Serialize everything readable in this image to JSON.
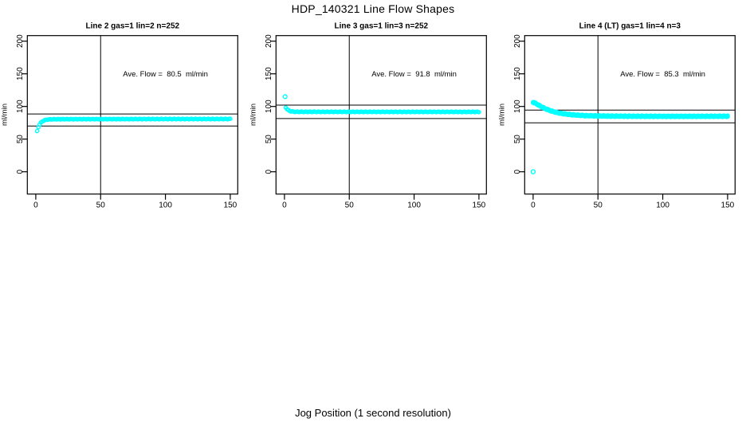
{
  "title": "HDP_140321  Line Flow Shapes",
  "xlabel": "Jog Position (1 second resolution)",
  "point_color": "#00ffff",
  "axis_color": "#000000",
  "background_color": "#ffffff",
  "chart_data": [
    {
      "type": "scatter",
      "title": "Line 2 gas=1 lin=2 n=252",
      "ylabel": "ml/min",
      "annotation": "Ave. Flow =  80.5  ml/min",
      "ave_flow_ml_min": 80.5,
      "xlim": [
        0,
        150
      ],
      "ylim": [
        0,
        200
      ],
      "xticks": [
        0,
        50,
        100,
        150
      ],
      "yticks": [
        0,
        50,
        100,
        150,
        200
      ],
      "vline_x": 50,
      "hlines": [
        88.5,
        70
      ],
      "marker_radius": 2.1,
      "row_offsets": [
        0
      ],
      "shape_points": [
        [
          1,
          62
        ],
        [
          2,
          68.5
        ],
        [
          3,
          72.5
        ],
        [
          4,
          75.2
        ],
        [
          5,
          77
        ],
        [
          6,
          78.2
        ],
        [
          7,
          79
        ],
        [
          8,
          79.6
        ],
        [
          9,
          79.9
        ],
        [
          10,
          80.1
        ],
        [
          12,
          80.3
        ],
        [
          15,
          80.45
        ],
        [
          20,
          80.5
        ],
        [
          30,
          80.55
        ],
        [
          50,
          80.6
        ],
        [
          80,
          80.7
        ],
        [
          110,
          80.75
        ],
        [
          150,
          80.8
        ]
      ],
      "outliers": []
    },
    {
      "type": "scatter",
      "title": "Line 3 gas=1 lin=3 n=252",
      "ylabel": "ml/min",
      "annotation": "Ave. Flow =  91.8  ml/min",
      "ave_flow_ml_min": 91.8,
      "xlim": [
        0,
        150
      ],
      "ylim": [
        0,
        200
      ],
      "xticks": [
        0,
        50,
        100,
        150
      ],
      "yticks": [
        0,
        50,
        100,
        150,
        200
      ],
      "vline_x": 50,
      "hlines": [
        102,
        81.5
      ],
      "marker_radius": 2.1,
      "row_offsets": [
        0
      ],
      "shape_points": [
        [
          1,
          98.5
        ],
        [
          2,
          96
        ],
        [
          3,
          94.3
        ],
        [
          4,
          93.2
        ],
        [
          5,
          92.6
        ],
        [
          6,
          92.2
        ],
        [
          8,
          91.9
        ],
        [
          10,
          91.85
        ],
        [
          15,
          91.8
        ],
        [
          30,
          91.8
        ],
        [
          60,
          91.75
        ],
        [
          100,
          91.7
        ],
        [
          150,
          91.7
        ]
      ],
      "outliers": [
        [
          0.5,
          115
        ]
      ]
    },
    {
      "type": "scatter",
      "title": "Line 4 (LT) gas=1 lin=4 n=3",
      "ylabel": "ml/min",
      "annotation": "Ave. Flow =  85.3  ml/min",
      "ave_flow_ml_min": 85.3,
      "xlim": [
        0,
        150
      ],
      "ylim": [
        0,
        200
      ],
      "xticks": [
        0,
        50,
        100,
        150
      ],
      "yticks": [
        0,
        50,
        100,
        150,
        200
      ],
      "vline_x": 50,
      "hlines": [
        94.5,
        75
      ],
      "marker_radius": 2.2,
      "row_offsets": [
        -0.5,
        0.5
      ],
      "shape_points": [
        [
          0,
          106.5
        ],
        [
          1,
          105.6
        ],
        [
          2,
          104.6
        ],
        [
          3,
          103.5
        ],
        [
          4,
          102.4
        ],
        [
          5,
          101.2
        ],
        [
          6,
          100.1
        ],
        [
          7,
          99
        ],
        [
          8,
          98
        ],
        [
          9,
          97
        ],
        [
          10,
          96.1
        ],
        [
          12,
          94.5
        ],
        [
          14,
          93.1
        ],
        [
          16,
          91.9
        ],
        [
          18,
          90.9
        ],
        [
          20,
          90
        ],
        [
          23,
          89
        ],
        [
          26,
          88.2
        ],
        [
          30,
          87.3
        ],
        [
          35,
          86.5
        ],
        [
          40,
          86
        ],
        [
          45,
          85.7
        ],
        [
          50,
          85.5
        ],
        [
          60,
          85.2
        ],
        [
          70,
          85.1
        ],
        [
          80,
          85
        ],
        [
          100,
          84.9
        ],
        [
          120,
          84.9
        ],
        [
          150,
          85
        ]
      ],
      "outliers": [
        [
          0,
          0
        ]
      ]
    }
  ]
}
